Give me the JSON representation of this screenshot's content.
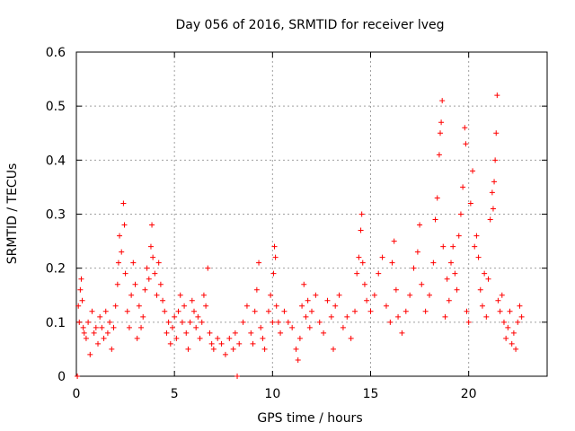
{
  "chart_data": {
    "type": "scatter",
    "title": "Day 056 of 2016, SRMTID for receiver lveg",
    "xlabel": "GPS time / hours",
    "ylabel": "SRMTID / TECUs",
    "xlim": [
      0,
      24
    ],
    "ylim": [
      0,
      0.6
    ],
    "xticks": [
      0,
      5,
      10,
      15,
      20
    ],
    "yticks": [
      0,
      0.1,
      0.2,
      0.3,
      0.4,
      0.5,
      0.6
    ],
    "xtick_labels": [
      "0",
      "5",
      "10",
      "15",
      "20"
    ],
    "ytick_labels": [
      "0",
      "0.1",
      "0.2",
      "0.3",
      "0.4",
      "0.5",
      "0.6"
    ],
    "grid": true,
    "marker": "+",
    "color": "#ff0000",
    "series": [
      {
        "name": "SRMTID",
        "points": [
          [
            0.05,
            0.0
          ],
          [
            0.1,
            0.13
          ],
          [
            0.15,
            0.1
          ],
          [
            0.2,
            0.16
          ],
          [
            0.25,
            0.18
          ],
          [
            0.3,
            0.14
          ],
          [
            0.35,
            0.09
          ],
          [
            0.4,
            0.08
          ],
          [
            0.5,
            0.07
          ],
          [
            0.6,
            0.1
          ],
          [
            0.7,
            0.04
          ],
          [
            0.8,
            0.12
          ],
          [
            0.9,
            0.08
          ],
          [
            1.0,
            0.09
          ],
          [
            1.1,
            0.06
          ],
          [
            1.2,
            0.11
          ],
          [
            1.3,
            0.09
          ],
          [
            1.4,
            0.07
          ],
          [
            1.5,
            0.12
          ],
          [
            1.6,
            0.08
          ],
          [
            1.7,
            0.1
          ],
          [
            1.8,
            0.05
          ],
          [
            1.9,
            0.09
          ],
          [
            2.0,
            0.13
          ],
          [
            2.1,
            0.17
          ],
          [
            2.15,
            0.21
          ],
          [
            2.2,
            0.26
          ],
          [
            2.3,
            0.23
          ],
          [
            2.4,
            0.32
          ],
          [
            2.45,
            0.28
          ],
          [
            2.5,
            0.19
          ],
          [
            2.6,
            0.12
          ],
          [
            2.7,
            0.09
          ],
          [
            2.8,
            0.15
          ],
          [
            2.9,
            0.21
          ],
          [
            3.0,
            0.17
          ],
          [
            3.1,
            0.07
          ],
          [
            3.2,
            0.13
          ],
          [
            3.3,
            0.09
          ],
          [
            3.4,
            0.11
          ],
          [
            3.5,
            0.16
          ],
          [
            3.6,
            0.2
          ],
          [
            3.7,
            0.18
          ],
          [
            3.8,
            0.24
          ],
          [
            3.85,
            0.28
          ],
          [
            3.9,
            0.22
          ],
          [
            4.0,
            0.19
          ],
          [
            4.1,
            0.15
          ],
          [
            4.2,
            0.21
          ],
          [
            4.3,
            0.17
          ],
          [
            4.4,
            0.14
          ],
          [
            4.5,
            0.12
          ],
          [
            4.6,
            0.08
          ],
          [
            4.7,
            0.1
          ],
          [
            4.8,
            0.06
          ],
          [
            4.9,
            0.09
          ],
          [
            5.0,
            0.11
          ],
          [
            5.1,
            0.07
          ],
          [
            5.2,
            0.12
          ],
          [
            5.3,
            0.15
          ],
          [
            5.4,
            0.1
          ],
          [
            5.5,
            0.13
          ],
          [
            5.6,
            0.08
          ],
          [
            5.7,
            0.05
          ],
          [
            5.8,
            0.1
          ],
          [
            5.9,
            0.14
          ],
          [
            6.0,
            0.12
          ],
          [
            6.1,
            0.09
          ],
          [
            6.2,
            0.11
          ],
          [
            6.3,
            0.07
          ],
          [
            6.4,
            0.1
          ],
          [
            6.5,
            0.15
          ],
          [
            6.6,
            0.13
          ],
          [
            6.7,
            0.2
          ],
          [
            6.8,
            0.08
          ],
          [
            6.9,
            0.06
          ],
          [
            7.0,
            0.05
          ],
          [
            7.2,
            0.07
          ],
          [
            7.4,
            0.06
          ],
          [
            7.6,
            0.04
          ],
          [
            7.8,
            0.07
          ],
          [
            8.0,
            0.05
          ],
          [
            8.1,
            0.08
          ],
          [
            8.2,
            0.0
          ],
          [
            8.3,
            0.06
          ],
          [
            8.5,
            0.1
          ],
          [
            8.7,
            0.13
          ],
          [
            8.9,
            0.08
          ],
          [
            9.0,
            0.06
          ],
          [
            9.1,
            0.12
          ],
          [
            9.2,
            0.16
          ],
          [
            9.3,
            0.21
          ],
          [
            9.4,
            0.09
          ],
          [
            9.5,
            0.07
          ],
          [
            9.6,
            0.05
          ],
          [
            9.8,
            0.12
          ],
          [
            9.9,
            0.15
          ],
          [
            10.0,
            0.1
          ],
          [
            10.05,
            0.19
          ],
          [
            10.1,
            0.24
          ],
          [
            10.15,
            0.22
          ],
          [
            10.2,
            0.13
          ],
          [
            10.3,
            0.1
          ],
          [
            10.4,
            0.08
          ],
          [
            10.6,
            0.12
          ],
          [
            10.8,
            0.1
          ],
          [
            11.0,
            0.09
          ],
          [
            11.2,
            0.05
          ],
          [
            11.3,
            0.03
          ],
          [
            11.4,
            0.07
          ],
          [
            11.5,
            0.13
          ],
          [
            11.6,
            0.17
          ],
          [
            11.7,
            0.11
          ],
          [
            11.8,
            0.14
          ],
          [
            11.9,
            0.09
          ],
          [
            12.0,
            0.12
          ],
          [
            12.2,
            0.15
          ],
          [
            12.4,
            0.1
          ],
          [
            12.6,
            0.08
          ],
          [
            12.8,
            0.14
          ],
          [
            13.0,
            0.11
          ],
          [
            13.1,
            0.05
          ],
          [
            13.2,
            0.13
          ],
          [
            13.4,
            0.15
          ],
          [
            13.6,
            0.09
          ],
          [
            13.8,
            0.11
          ],
          [
            14.0,
            0.07
          ],
          [
            14.2,
            0.12
          ],
          [
            14.3,
            0.19
          ],
          [
            14.4,
            0.22
          ],
          [
            14.5,
            0.27
          ],
          [
            14.55,
            0.3
          ],
          [
            14.6,
            0.21
          ],
          [
            14.7,
            0.17
          ],
          [
            14.8,
            0.14
          ],
          [
            15.0,
            0.12
          ],
          [
            15.2,
            0.15
          ],
          [
            15.4,
            0.19
          ],
          [
            15.6,
            0.22
          ],
          [
            15.8,
            0.13
          ],
          [
            16.0,
            0.1
          ],
          [
            16.1,
            0.21
          ],
          [
            16.2,
            0.25
          ],
          [
            16.3,
            0.16
          ],
          [
            16.4,
            0.11
          ],
          [
            16.6,
            0.08
          ],
          [
            16.8,
            0.12
          ],
          [
            17.0,
            0.15
          ],
          [
            17.2,
            0.2
          ],
          [
            17.4,
            0.23
          ],
          [
            17.5,
            0.28
          ],
          [
            17.6,
            0.17
          ],
          [
            17.8,
            0.12
          ],
          [
            18.0,
            0.15
          ],
          [
            18.2,
            0.21
          ],
          [
            18.3,
            0.29
          ],
          [
            18.4,
            0.33
          ],
          [
            18.5,
            0.41
          ],
          [
            18.55,
            0.45
          ],
          [
            18.6,
            0.47
          ],
          [
            18.65,
            0.51
          ],
          [
            18.7,
            0.24
          ],
          [
            18.8,
            0.11
          ],
          [
            18.9,
            0.18
          ],
          [
            19.0,
            0.14
          ],
          [
            19.1,
            0.21
          ],
          [
            19.2,
            0.24
          ],
          [
            19.3,
            0.19
          ],
          [
            19.4,
            0.16
          ],
          [
            19.5,
            0.26
          ],
          [
            19.6,
            0.3
          ],
          [
            19.7,
            0.35
          ],
          [
            19.8,
            0.46
          ],
          [
            19.85,
            0.43
          ],
          [
            19.9,
            0.12
          ],
          [
            20.0,
            0.1
          ],
          [
            20.1,
            0.32
          ],
          [
            20.2,
            0.38
          ],
          [
            20.3,
            0.24
          ],
          [
            20.4,
            0.26
          ],
          [
            20.5,
            0.22
          ],
          [
            20.6,
            0.16
          ],
          [
            20.7,
            0.13
          ],
          [
            20.8,
            0.19
          ],
          [
            20.9,
            0.11
          ],
          [
            21.0,
            0.18
          ],
          [
            21.1,
            0.29
          ],
          [
            21.2,
            0.34
          ],
          [
            21.25,
            0.31
          ],
          [
            21.3,
            0.36
          ],
          [
            21.35,
            0.4
          ],
          [
            21.4,
            0.45
          ],
          [
            21.45,
            0.52
          ],
          [
            21.5,
            0.14
          ],
          [
            21.6,
            0.12
          ],
          [
            21.7,
            0.15
          ],
          [
            21.8,
            0.1
          ],
          [
            21.9,
            0.07
          ],
          [
            22.0,
            0.09
          ],
          [
            22.1,
            0.12
          ],
          [
            22.2,
            0.06
          ],
          [
            22.3,
            0.08
          ],
          [
            22.4,
            0.05
          ],
          [
            22.5,
            0.1
          ],
          [
            22.6,
            0.13
          ],
          [
            22.7,
            0.11
          ]
        ]
      }
    ]
  }
}
